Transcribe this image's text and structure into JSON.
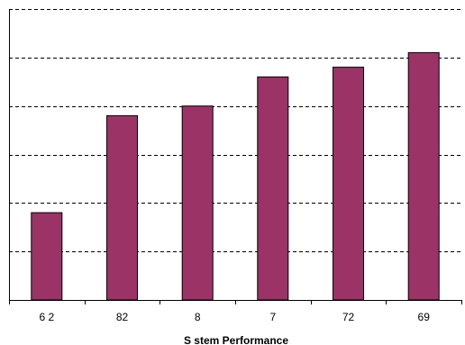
{
  "chart_data": {
    "type": "bar",
    "title": "",
    "xlabel": "S stem Performance",
    "ylabel": "",
    "categories": [
      "6 2",
      "82",
      "8",
      "7",
      "72",
      "69"
    ],
    "values": [
      1.8,
      3.8,
      4.0,
      4.6,
      4.8,
      5.1
    ],
    "ylim": [
      0,
      6
    ],
    "grid": true,
    "grid_style": "dashed",
    "legend": "none",
    "colors": {
      "bar": "#9B3366",
      "bar_stroke": "#000000",
      "grid": "#000000",
      "axis": "#000000"
    }
  }
}
